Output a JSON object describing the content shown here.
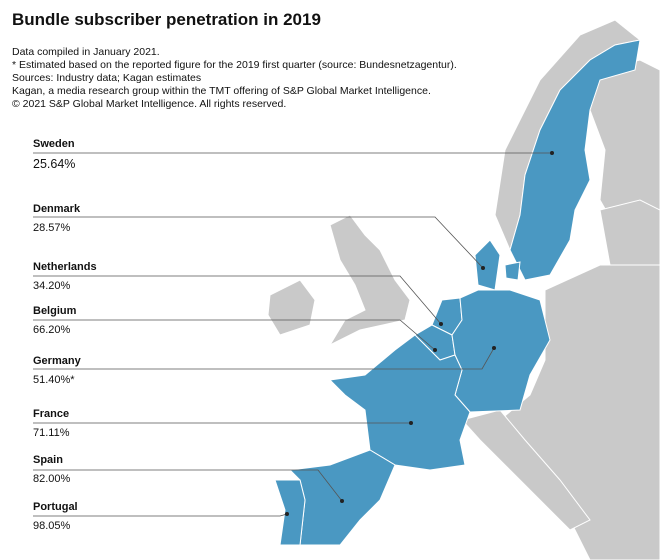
{
  "title": "Bundle subscriber penetration in 2019",
  "notes": [
    "Data compiled in January 2021.",
    "* Estimated based on the reported figure for the 2019 first quarter (source: Bundesnetzagentur).",
    "Sources: Industry data; Kagan estimates",
    " Kagan, a media research group within the TMT offering of S&P Global Market Intelligence.",
    "© 2021 S&P Global Market Intelligence. All rights reserved."
  ],
  "colors": {
    "highlighted": "#4a98c2",
    "other": "#c9c9c9",
    "border": "#ffffff",
    "leader": "#555555"
  },
  "countries": [
    {
      "name": "Sweden",
      "value": "25.64%"
    },
    {
      "name": "Denmark",
      "value": "28.57%"
    },
    {
      "name": "Netherlands",
      "value": "34.20%"
    },
    {
      "name": "Belgium",
      "value": "66.20%"
    },
    {
      "name": "Germany",
      "value": "51.40%*"
    },
    {
      "name": "France",
      "value": "71.11%"
    },
    {
      "name": "Spain",
      "value": "82.00%"
    },
    {
      "name": "Portugal",
      "value": "98.05%"
    }
  ]
}
